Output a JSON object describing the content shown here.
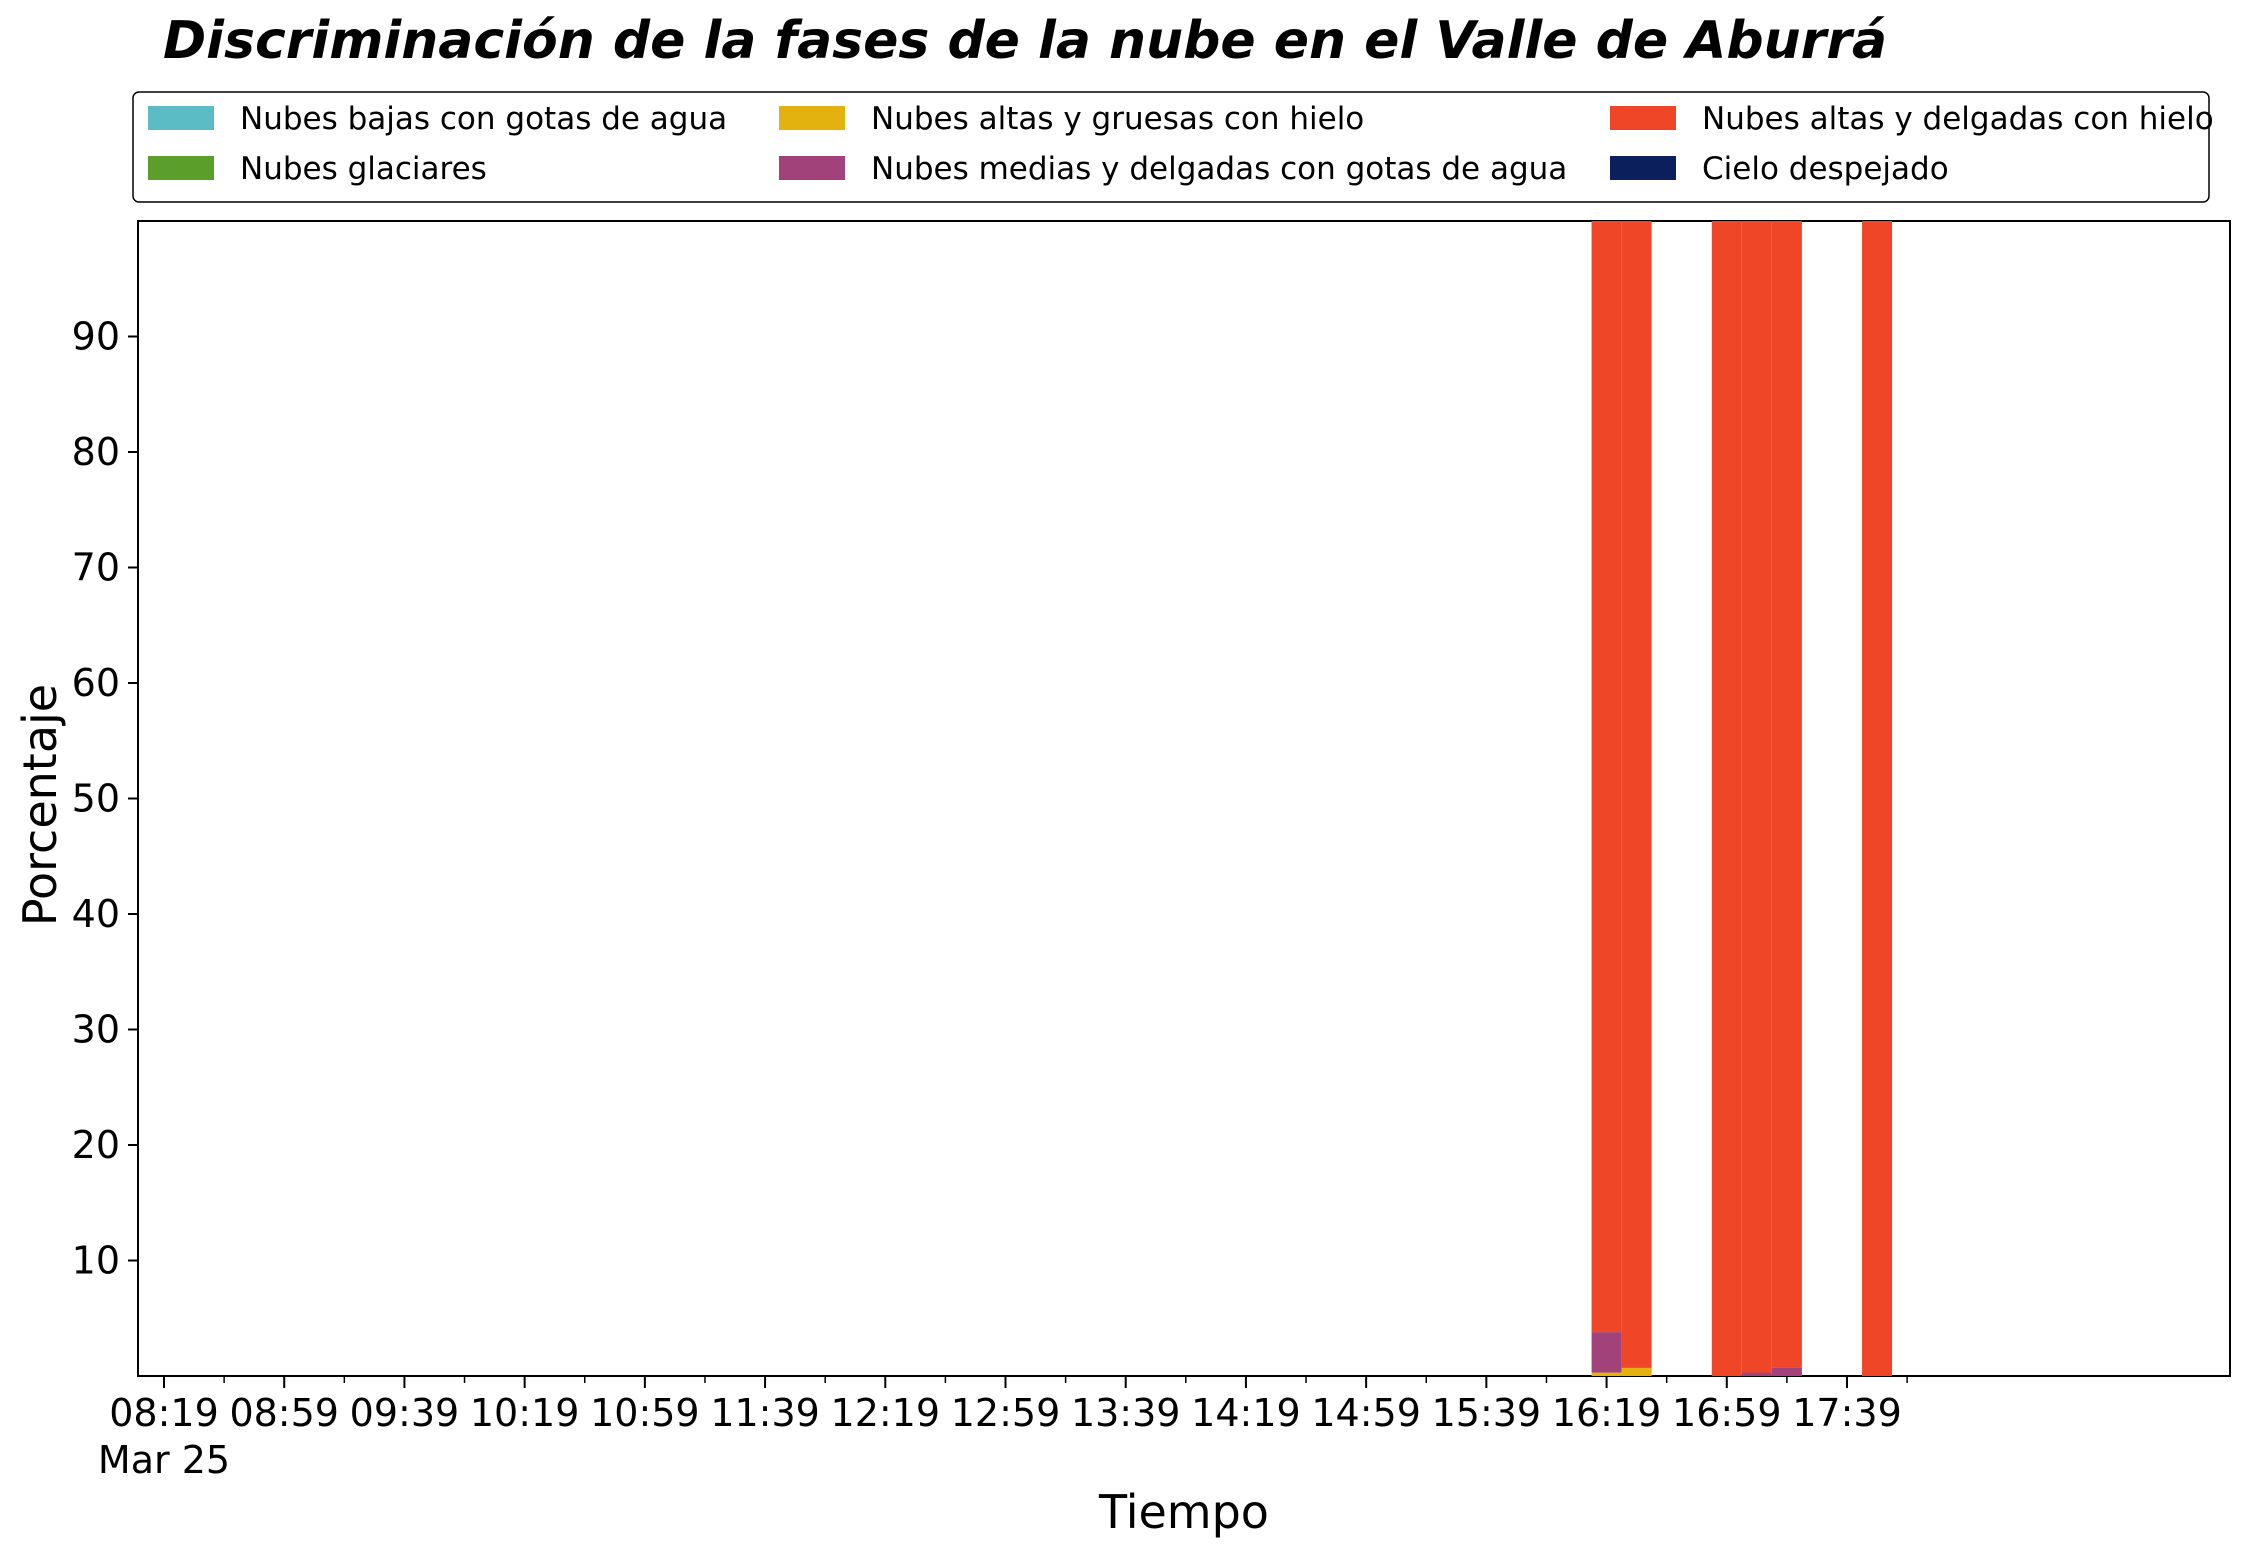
{
  "chart_data": {
    "type": "bar",
    "stacked": true,
    "title": "Discriminación de la fases de la nube en el Valle de Aburrá",
    "xlabel": "Tiempo",
    "ylabel": "Porcentaje",
    "ylim": [
      0,
      100
    ],
    "yticks": [
      10,
      20,
      30,
      40,
      50,
      60,
      70,
      80,
      90
    ],
    "x_tick_labels": [
      "08:19",
      "08:59",
      "09:39",
      "10:19",
      "10:59",
      "11:39",
      "12:19",
      "12:59",
      "13:39",
      "14:19",
      "14:59",
      "15:39",
      "16:19",
      "16:59",
      "17:39"
    ],
    "x_date_label": "Mar 25",
    "grid": false,
    "legend_position": "top",
    "categories": [
      "16:19",
      "16:29",
      "16:59",
      "17:09",
      "17:19",
      "17:49"
    ],
    "series": [
      {
        "name": "Nubes bajas con gotas de agua",
        "color": "#5bbcc6",
        "values": [
          0,
          0,
          0,
          0,
          0,
          0
        ]
      },
      {
        "name": "Nubes glaciares",
        "color": "#5b9e2a",
        "values": [
          0,
          0,
          0,
          0,
          0,
          0
        ]
      },
      {
        "name": "Nubes altas y gruesas con hielo",
        "color": "#e3b20f",
        "values": [
          0.3,
          0.7,
          0,
          0,
          0,
          0
        ]
      },
      {
        "name": "Nubes medias y delgadas con gotas de agua",
        "color": "#a2427a",
        "values": [
          3.5,
          0,
          0,
          0.3,
          0.7,
          0
        ]
      },
      {
        "name": "Nubes altas y delgadas con hielo",
        "color": "#ee4627",
        "values": [
          96.2,
          99.3,
          100,
          99.7,
          99.3,
          100
        ]
      },
      {
        "name": "Cielo despejado",
        "color": "#0a1f5c",
        "values": [
          0,
          0,
          0,
          0,
          0,
          0
        ]
      }
    ]
  }
}
